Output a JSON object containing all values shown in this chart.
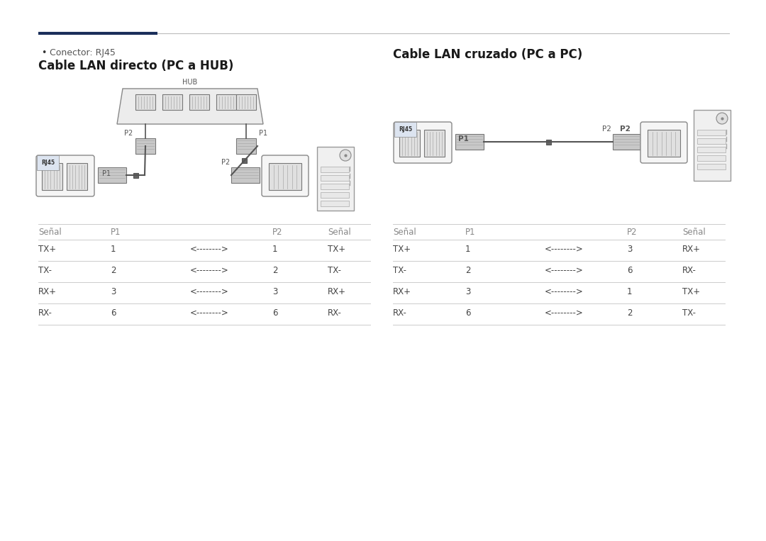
{
  "bg_color": "#ffffff",
  "top_line_dark_color": "#1a2e5a",
  "top_line_light_color": "#bbbbbb",
  "bullet_text": "Conector: RJ45",
  "left_title": "Cable LAN directo (PC a HUB)",
  "right_title": "Cable LAN cruzado (PC a PC)",
  "left_table_headers": [
    "Señal",
    "P1",
    "",
    "P2",
    "Señal"
  ],
  "left_table_rows": [
    [
      "TX+",
      "1",
      "<-------->",
      "1",
      "TX+"
    ],
    [
      "TX-",
      "2",
      "<-------->",
      "2",
      "TX-"
    ],
    [
      "RX+",
      "3",
      "<-------->",
      "3",
      "RX+"
    ],
    [
      "RX-",
      "6",
      "<-------->",
      "6",
      "RX-"
    ]
  ],
  "right_table_headers": [
    "Señal",
    "P1",
    "",
    "P2",
    "Señal"
  ],
  "right_table_rows": [
    [
      "TX+",
      "1",
      "<-------->",
      "3",
      "RX+"
    ],
    [
      "TX-",
      "2",
      "<-------->",
      "6",
      "RX-"
    ],
    [
      "RX+",
      "3",
      "<-------->",
      "1",
      "TX+"
    ],
    [
      "RX-",
      "6",
      "<-------->",
      "2",
      "TX-"
    ]
  ],
  "table_header_color": "#888888",
  "table_text_color": "#444444",
  "table_line_color": "#cccccc",
  "line_color": "#555555",
  "box_fill": "#f5f5f5",
  "box_edge": "#888888",
  "port_fill": "#e0e0e0",
  "plug_fill": "#c8c8c8",
  "hub_fill": "#ececec",
  "pc_fill": "#f0f0f0",
  "rj45_label_fill": "#dce4f0"
}
